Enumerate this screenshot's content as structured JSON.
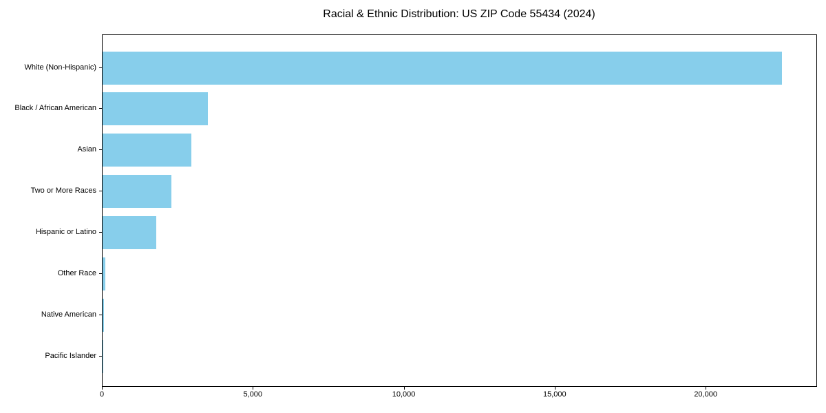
{
  "chart_data": {
    "type": "bar",
    "orientation": "horizontal",
    "title": "Racial & Ethnic Distribution: US ZIP Code 55434 (2024)",
    "categories": [
      "White (Non-Hispanic)",
      "Black / African American",
      "Asian",
      "Two or More Races",
      "Hispanic or Latino",
      "Other Race",
      "Native American",
      "Pacific Islander"
    ],
    "values": [
      22500,
      3480,
      2930,
      2270,
      1770,
      95,
      35,
      8
    ],
    "xlabel": "",
    "ylabel": "",
    "xlim": [
      0,
      23645
    ],
    "x_ticks": [
      {
        "value": 0,
        "label": "0"
      },
      {
        "value": 5000,
        "label": "5,000"
      },
      {
        "value": 10000,
        "label": "10,000"
      },
      {
        "value": 15000,
        "label": "15,000"
      },
      {
        "value": 20000,
        "label": "20,000"
      }
    ],
    "bar_color": "#87CEEB",
    "grid": false,
    "legend": false
  }
}
